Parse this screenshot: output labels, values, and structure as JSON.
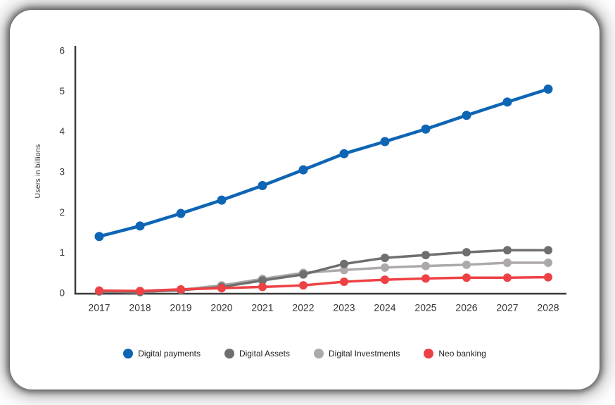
{
  "chart_data": {
    "type": "line",
    "title": "",
    "xlabel": "",
    "ylabel": "Users in billions",
    "x": [
      2017,
      2018,
      2019,
      2020,
      2021,
      2022,
      2023,
      2024,
      2025,
      2026,
      2027,
      2028
    ],
    "ylim": [
      0,
      6
    ],
    "yticks": [
      0,
      1,
      2,
      3,
      4,
      5,
      6
    ],
    "grid": false,
    "legend_position": "bottom",
    "series": [
      {
        "name": "Digital payments",
        "color": "#0E65B4",
        "values": [
          1.4,
          1.66,
          1.97,
          2.3,
          2.66,
          3.05,
          3.45,
          3.75,
          4.06,
          4.4,
          4.73,
          5.05
        ]
      },
      {
        "name": "Digital Assets",
        "color": "#6F6F6F",
        "values": [
          0.04,
          0.03,
          0.07,
          0.15,
          0.31,
          0.46,
          0.72,
          0.87,
          0.94,
          1.01,
          1.06,
          1.06
        ]
      },
      {
        "name": "Digital Investments",
        "color": "#ADA9A9",
        "values": [
          0.04,
          0.02,
          0.08,
          0.19,
          0.35,
          0.5,
          0.57,
          0.63,
          0.67,
          0.7,
          0.75,
          0.75
        ]
      },
      {
        "name": "Neo banking",
        "color": "#EE4145",
        "values": [
          0.06,
          0.05,
          0.09,
          0.12,
          0.15,
          0.19,
          0.28,
          0.33,
          0.36,
          0.38,
          0.38,
          0.39
        ]
      }
    ]
  }
}
